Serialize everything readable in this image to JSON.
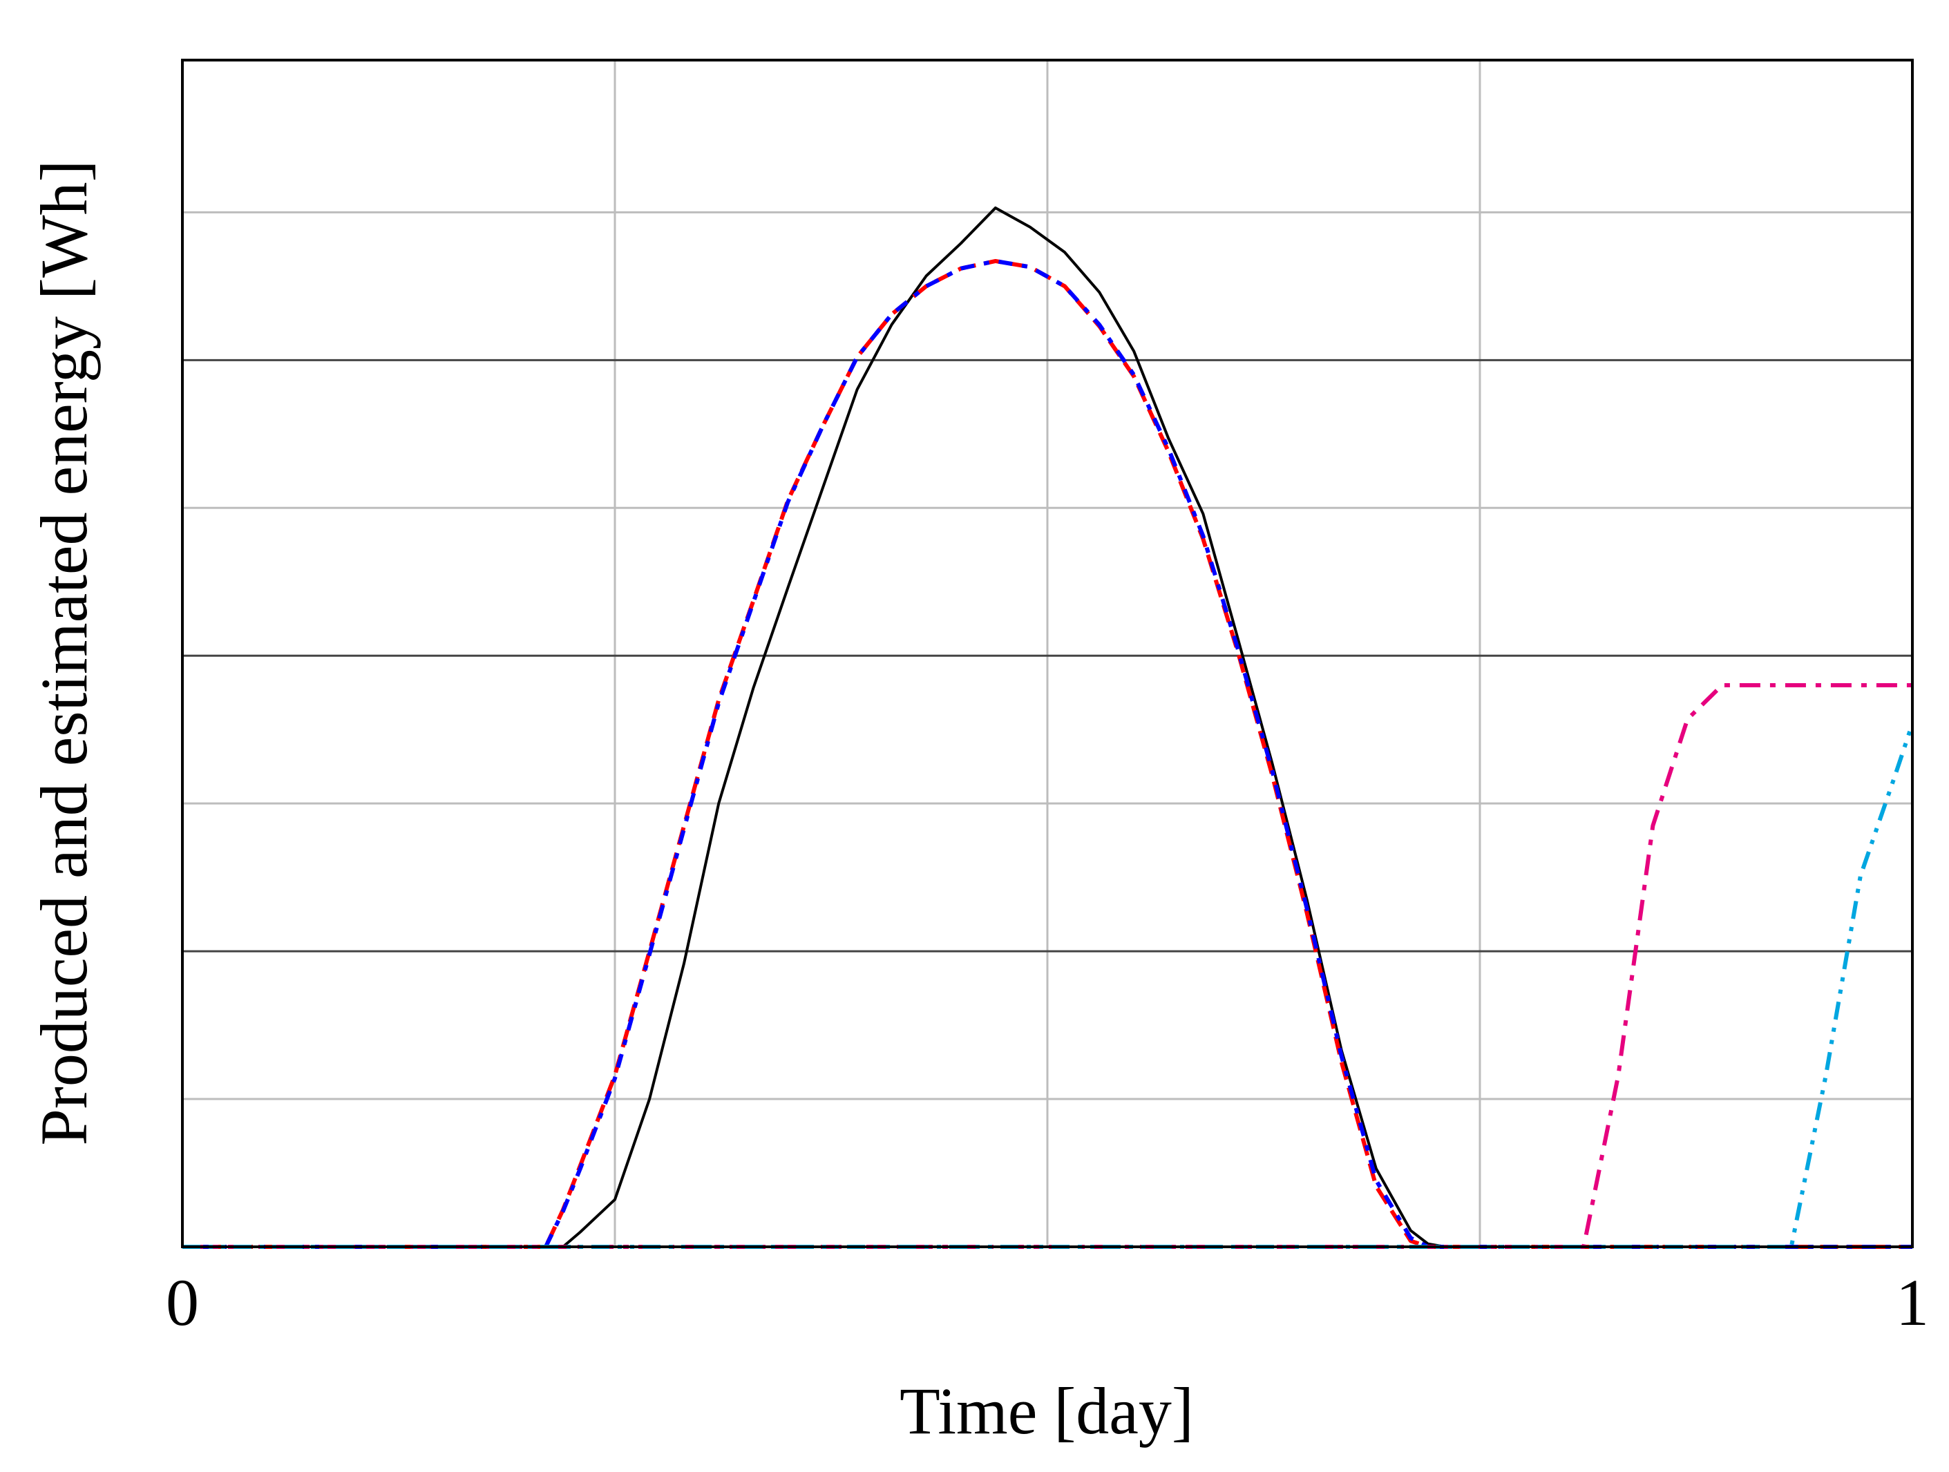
{
  "chart_data": {
    "type": "line",
    "xlabel": "Time [day]",
    "ylabel": "Produced and estimated energy [Wh]",
    "x": [
      0,
      0.21,
      0.22,
      0.23,
      0.25,
      0.27,
      0.29,
      0.31,
      0.33,
      0.35,
      0.37,
      0.39,
      0.41,
      0.43,
      0.45,
      0.47,
      0.49,
      0.51,
      0.53,
      0.55,
      0.57,
      0.59,
      0.61,
      0.63,
      0.65,
      0.67,
      0.69,
      0.71,
      0.72,
      0.73,
      0.81,
      0.83,
      0.85,
      0.87,
      0.89,
      0.93,
      0.95,
      0.97,
      0.99,
      1
    ],
    "series": [
      {
        "color": "#000000",
        "dash": "solid",
        "values": [
          0,
          0,
          0,
          0.1,
          0.32,
          1.0,
          1.92,
          3.0,
          3.78,
          4.46,
          5.13,
          5.8,
          6.24,
          6.57,
          6.79,
          7.03,
          6.9,
          6.73,
          6.46,
          6.06,
          5.47,
          4.96,
          4.12,
          3.27,
          2.35,
          1.33,
          0.53,
          0.11,
          0.02,
          0,
          0,
          0,
          0,
          0,
          0,
          0,
          0,
          0,
          0,
          0
        ]
      },
      {
        "color": "#ff0000",
        "dash": "dashed",
        "values": [
          0,
          0,
          0.25,
          0.55,
          1.16,
          2.0,
          2.85,
          3.7,
          4.37,
          5.05,
          5.55,
          6.02,
          6.31,
          6.5,
          6.62,
          6.67,
          6.63,
          6.5,
          6.23,
          5.89,
          5.38,
          4.79,
          4.03,
          3.19,
          2.26,
          1.25,
          0.41,
          0.04,
          0,
          0,
          0,
          0,
          0,
          0,
          0,
          0,
          0,
          0,
          0,
          0
        ]
      },
      {
        "color": "#0000ff",
        "dash": "dotted",
        "values": [
          0,
          0,
          0.24,
          0.53,
          1.14,
          1.98,
          2.83,
          3.68,
          4.36,
          5.04,
          5.55,
          6.02,
          6.31,
          6.5,
          6.62,
          6.67,
          6.63,
          6.5,
          6.24,
          5.9,
          5.4,
          4.81,
          4.05,
          3.22,
          2.29,
          1.29,
          0.45,
          0.06,
          0,
          0,
          0,
          0,
          0,
          0,
          0,
          0,
          0,
          0,
          0,
          0
        ]
      },
      {
        "color": "#e6007e",
        "dash": "dashdot",
        "values": [
          0,
          0,
          0,
          0,
          0,
          0,
          0,
          0,
          0,
          0,
          0,
          0,
          0,
          0,
          0,
          0,
          0,
          0,
          0,
          0,
          0,
          0,
          0,
          0,
          0,
          0,
          0,
          0,
          0,
          0,
          0,
          1.16,
          2.85,
          3.57,
          3.8,
          3.8,
          3.8,
          3.8,
          3.8,
          3.8
        ]
      },
      {
        "color": "#00a6e0",
        "dash": "dashdotdot",
        "values": [
          0,
          0,
          0,
          0,
          0,
          0,
          0,
          0,
          0,
          0,
          0,
          0,
          0,
          0,
          0,
          0,
          0,
          0,
          0,
          0,
          0,
          0,
          0,
          0,
          0,
          0,
          0,
          0,
          0,
          0,
          0,
          0,
          0,
          0,
          0,
          0,
          1.16,
          2.51,
          3.19,
          3.54
        ]
      }
    ],
    "xlim": [
      0,
      1
    ],
    "ylim": [
      0,
      8.03
    ],
    "xticks": [
      0,
      1
    ],
    "xgrid": [
      0.25,
      0.5,
      0.75
    ],
    "ygrid": [
      1,
      2,
      3,
      4,
      5,
      6,
      7
    ],
    "grid": true
  }
}
